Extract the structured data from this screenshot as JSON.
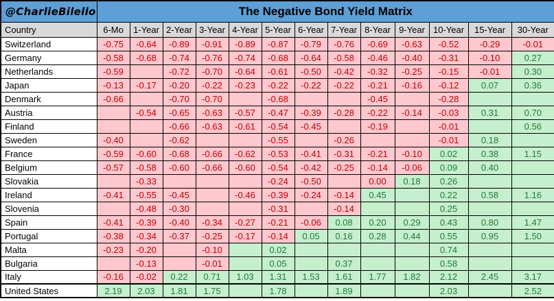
{
  "attribution": "@CharlieBilello",
  "title": "The Negative Bond Yield Matrix",
  "colors": {
    "header_blue": "#5D9FD6",
    "header_gray": "#D9D9D9",
    "negative_fill": "#FFC7CE",
    "negative_text": "#C00000",
    "positive_fill": "#C6EFCE",
    "positive_text": "#1E7B34"
  },
  "chart_data": {
    "type": "table",
    "title": "The Negative Bond Yield Matrix",
    "legend": {
      "n": "negative/zero yield (red on pink)",
      "p": "positive yield (green on light green)",
      "blank": "no data; cell keeps region color"
    },
    "columns": [
      "Country",
      "6-Mo",
      "1-Year",
      "2-Year",
      "3-Year",
      "4-Year",
      "5-Year",
      "6-Year",
      "7-Year",
      "8-Year",
      "9-Year",
      "10-Year",
      "15-Year",
      "30-Year"
    ],
    "rows": [
      {
        "country": "Switzerland",
        "thick_top": false,
        "cells": [
          [
            "-0.75",
            "n"
          ],
          [
            "-0.64",
            "n"
          ],
          [
            "-0.89",
            "n"
          ],
          [
            "-0.91",
            "n"
          ],
          [
            "-0.89",
            "n"
          ],
          [
            "-0.87",
            "n"
          ],
          [
            "-0.79",
            "n"
          ],
          [
            "-0.76",
            "n"
          ],
          [
            "-0.69",
            "n"
          ],
          [
            "-0.63",
            "n"
          ],
          [
            "-0.52",
            "n"
          ],
          [
            "-0.29",
            "n"
          ],
          [
            "-0.01",
            "n"
          ]
        ]
      },
      {
        "country": "Germany",
        "thick_top": false,
        "cells": [
          [
            "-0.58",
            "n"
          ],
          [
            "-0.68",
            "n"
          ],
          [
            "-0.74",
            "n"
          ],
          [
            "-0.76",
            "n"
          ],
          [
            "-0.74",
            "n"
          ],
          [
            "-0.68",
            "n"
          ],
          [
            "-0.64",
            "n"
          ],
          [
            "-0.58",
            "n"
          ],
          [
            "-0.46",
            "n"
          ],
          [
            "-0.40",
            "n"
          ],
          [
            "-0.31",
            "n"
          ],
          [
            "-0.10",
            "n"
          ],
          [
            "0.27",
            "p"
          ]
        ]
      },
      {
        "country": "Netherlands",
        "thick_top": false,
        "cells": [
          [
            "-0.59",
            "n"
          ],
          [
            "",
            "n"
          ],
          [
            "-0.72",
            "n"
          ],
          [
            "-0.70",
            "n"
          ],
          [
            "-0.64",
            "n"
          ],
          [
            "-0.61",
            "n"
          ],
          [
            "-0.50",
            "n"
          ],
          [
            "-0.42",
            "n"
          ],
          [
            "-0.32",
            "n"
          ],
          [
            "-0.25",
            "n"
          ],
          [
            "-0.15",
            "n"
          ],
          [
            "-0.01",
            "n"
          ],
          [
            "0.30",
            "p"
          ]
        ]
      },
      {
        "country": "Japan",
        "thick_top": false,
        "cells": [
          [
            "-0.13",
            "n"
          ],
          [
            "-0.17",
            "n"
          ],
          [
            "-0.20",
            "n"
          ],
          [
            "-0.22",
            "n"
          ],
          [
            "-0.23",
            "n"
          ],
          [
            "-0.22",
            "n"
          ],
          [
            "-0.22",
            "n"
          ],
          [
            "-0.22",
            "n"
          ],
          [
            "-0.21",
            "n"
          ],
          [
            "-0.16",
            "n"
          ],
          [
            "-0.12",
            "n"
          ],
          [
            "0.07",
            "p"
          ],
          [
            "0.36",
            "p"
          ]
        ]
      },
      {
        "country": "Denmark",
        "thick_top": false,
        "cells": [
          [
            "-0.66",
            "n"
          ],
          [
            "",
            "n"
          ],
          [
            "-0.70",
            "n"
          ],
          [
            "-0.70",
            "n"
          ],
          [
            "",
            "n"
          ],
          [
            "-0.68",
            "n"
          ],
          [
            "",
            "n"
          ],
          [
            "",
            "n"
          ],
          [
            "-0.45",
            "n"
          ],
          [
            "",
            "n"
          ],
          [
            "-0.28",
            "n"
          ],
          [
            "",
            "p"
          ],
          [
            "",
            "p"
          ]
        ]
      },
      {
        "country": "Austria",
        "thick_top": false,
        "cells": [
          [
            "",
            "n"
          ],
          [
            "-0.54",
            "n"
          ],
          [
            "-0.65",
            "n"
          ],
          [
            "-0.63",
            "n"
          ],
          [
            "-0.57",
            "n"
          ],
          [
            "-0.47",
            "n"
          ],
          [
            "-0.39",
            "n"
          ],
          [
            "-0.28",
            "n"
          ],
          [
            "-0.22",
            "n"
          ],
          [
            "-0.14",
            "n"
          ],
          [
            "-0.03",
            "n"
          ],
          [
            "0.31",
            "p"
          ],
          [
            "0.70",
            "p"
          ]
        ]
      },
      {
        "country": "Finland",
        "thick_top": false,
        "cells": [
          [
            "",
            "n"
          ],
          [
            "",
            "n"
          ],
          [
            "-0.66",
            "n"
          ],
          [
            "-0.63",
            "n"
          ],
          [
            "-0.61",
            "n"
          ],
          [
            "-0.54",
            "n"
          ],
          [
            "-0.45",
            "n"
          ],
          [
            "",
            "n"
          ],
          [
            "-0.19",
            "n"
          ],
          [
            "",
            "n"
          ],
          [
            "-0.01",
            "n"
          ],
          [
            "",
            "p"
          ],
          [
            "0.56",
            "p"
          ]
        ]
      },
      {
        "country": "Sweden",
        "thick_top": false,
        "cells": [
          [
            "-0.40",
            "n"
          ],
          [
            "",
            "n"
          ],
          [
            "-0.62",
            "n"
          ],
          [
            "",
            "n"
          ],
          [
            "",
            "n"
          ],
          [
            "-0.55",
            "n"
          ],
          [
            "",
            "n"
          ],
          [
            "-0.26",
            "n"
          ],
          [
            "",
            "n"
          ],
          [
            "",
            "n"
          ],
          [
            "-0.01",
            "n"
          ],
          [
            "0.18",
            "p"
          ],
          [
            "",
            "p"
          ]
        ]
      },
      {
        "country": "France",
        "thick_top": false,
        "cells": [
          [
            "-0.59",
            "n"
          ],
          [
            "-0.60",
            "n"
          ],
          [
            "-0.68",
            "n"
          ],
          [
            "-0.66",
            "n"
          ],
          [
            "-0.62",
            "n"
          ],
          [
            "-0.53",
            "n"
          ],
          [
            "-0.41",
            "n"
          ],
          [
            "-0.31",
            "n"
          ],
          [
            "-0.21",
            "n"
          ],
          [
            "-0.10",
            "n"
          ],
          [
            "0.02",
            "p"
          ],
          [
            "0.38",
            "p"
          ],
          [
            "1.15",
            "p"
          ]
        ]
      },
      {
        "country": "Belgium",
        "thick_top": false,
        "cells": [
          [
            "-0.57",
            "n"
          ],
          [
            "-0.58",
            "n"
          ],
          [
            "-0.60",
            "n"
          ],
          [
            "-0.66",
            "n"
          ],
          [
            "-0.60",
            "n"
          ],
          [
            "-0.54",
            "n"
          ],
          [
            "-0.42",
            "n"
          ],
          [
            "-0.25",
            "n"
          ],
          [
            "-0.14",
            "n"
          ],
          [
            "-0.06",
            "n"
          ],
          [
            "0.09",
            "p"
          ],
          [
            "0.40",
            "p"
          ],
          [
            "",
            "p"
          ]
        ]
      },
      {
        "country": "Slovakia",
        "thick_top": false,
        "cells": [
          [
            "",
            "n"
          ],
          [
            "-0.33",
            "n"
          ],
          [
            "",
            "n"
          ],
          [
            "",
            "n"
          ],
          [
            "",
            "n"
          ],
          [
            "-0.24",
            "n"
          ],
          [
            "-0.50",
            "n"
          ],
          [
            "",
            "n"
          ],
          [
            "0.00",
            "n"
          ],
          [
            "0.18",
            "p"
          ],
          [
            "0.26",
            "p"
          ],
          [
            "",
            "p"
          ],
          [
            "",
            "p"
          ]
        ]
      },
      {
        "country": "Ireland",
        "thick_top": false,
        "cells": [
          [
            "-0.41",
            "n"
          ],
          [
            "-0.55",
            "n"
          ],
          [
            "-0.45",
            "n"
          ],
          [
            "",
            "n"
          ],
          [
            "-0.46",
            "n"
          ],
          [
            "-0.39",
            "n"
          ],
          [
            "-0.24",
            "n"
          ],
          [
            "-0.14",
            "n"
          ],
          [
            "0.45",
            "p"
          ],
          [
            "",
            "p"
          ],
          [
            "0.22",
            "p"
          ],
          [
            "0.58",
            "p"
          ],
          [
            "1.16",
            "p"
          ]
        ]
      },
      {
        "country": "Slovenia",
        "thick_top": false,
        "cells": [
          [
            "",
            "n"
          ],
          [
            "-0.48",
            "n"
          ],
          [
            "-0.30",
            "n"
          ],
          [
            "",
            "n"
          ],
          [
            "",
            "n"
          ],
          [
            "-0.31",
            "n"
          ],
          [
            "",
            "n"
          ],
          [
            "-0.14",
            "n"
          ],
          [
            "",
            "p"
          ],
          [
            "",
            "p"
          ],
          [
            "0.25",
            "p"
          ],
          [
            "",
            "p"
          ],
          [
            "",
            "p"
          ]
        ]
      },
      {
        "country": "Spain",
        "thick_top": false,
        "cells": [
          [
            "-0.41",
            "n"
          ],
          [
            "-0.39",
            "n"
          ],
          [
            "-0.40",
            "n"
          ],
          [
            "-0.34",
            "n"
          ],
          [
            "-0.27",
            "n"
          ],
          [
            "-0.21",
            "n"
          ],
          [
            "-0.06",
            "n"
          ],
          [
            "0.08",
            "p"
          ],
          [
            "0.20",
            "p"
          ],
          [
            "0.29",
            "p"
          ],
          [
            "0.43",
            "p"
          ],
          [
            "0.80",
            "p"
          ],
          [
            "1.47",
            "p"
          ]
        ]
      },
      {
        "country": "Portugal",
        "thick_top": false,
        "cells": [
          [
            "-0.38",
            "n"
          ],
          [
            "-0.34",
            "n"
          ],
          [
            "-0.37",
            "n"
          ],
          [
            "-0.25",
            "n"
          ],
          [
            "-0.17",
            "n"
          ],
          [
            "-0.14",
            "n"
          ],
          [
            "0.05",
            "p"
          ],
          [
            "0.16",
            "p"
          ],
          [
            "0.28",
            "p"
          ],
          [
            "0.44",
            "p"
          ],
          [
            "0.55",
            "p"
          ],
          [
            "0.95",
            "p"
          ],
          [
            "1.50",
            "p"
          ]
        ]
      },
      {
        "country": "Malta",
        "thick_top": false,
        "cells": [
          [
            "-0.23",
            "n"
          ],
          [
            "-0.20",
            "n"
          ],
          [
            "",
            "n"
          ],
          [
            "-0.10",
            "n"
          ],
          [
            "",
            "p"
          ],
          [
            "0.02",
            "p"
          ],
          [
            "",
            "p"
          ],
          [
            "",
            "p"
          ],
          [
            "",
            "p"
          ],
          [
            "",
            "p"
          ],
          [
            "0.74",
            "p"
          ],
          [
            "",
            "p"
          ],
          [
            "",
            "p"
          ]
        ]
      },
      {
        "country": "Bulgaria",
        "thick_top": false,
        "cells": [
          [
            "",
            "n"
          ],
          [
            "-0.13",
            "n"
          ],
          [
            "",
            "n"
          ],
          [
            "-0.01",
            "n"
          ],
          [
            "",
            "p"
          ],
          [
            "0.05",
            "p"
          ],
          [
            "",
            "p"
          ],
          [
            "0.37",
            "p"
          ],
          [
            "",
            "p"
          ],
          [
            "",
            "p"
          ],
          [
            "0.58",
            "p"
          ],
          [
            "",
            "p"
          ],
          [
            "",
            "p"
          ]
        ]
      },
      {
        "country": "Italy",
        "thick_top": false,
        "cells": [
          [
            "-0.16",
            "n"
          ],
          [
            "-0.02",
            "n"
          ],
          [
            "0.22",
            "p"
          ],
          [
            "0.71",
            "p"
          ],
          [
            "1.03",
            "p"
          ],
          [
            "1.31",
            "p"
          ],
          [
            "1.53",
            "p"
          ],
          [
            "1.61",
            "p"
          ],
          [
            "1.77",
            "p"
          ],
          [
            "1.82",
            "p"
          ],
          [
            "2.12",
            "p"
          ],
          [
            "2.45",
            "p"
          ],
          [
            "3.17",
            "p"
          ]
        ]
      },
      {
        "country": "United States",
        "thick_top": true,
        "cells": [
          [
            "2.19",
            "p"
          ],
          [
            "2.03",
            "p"
          ],
          [
            "1.81",
            "p"
          ],
          [
            "1.75",
            "p"
          ],
          [
            "",
            "p"
          ],
          [
            "1.78",
            "p"
          ],
          [
            "",
            "p"
          ],
          [
            "1.89",
            "p"
          ],
          [
            "",
            "p"
          ],
          [
            "",
            "p"
          ],
          [
            "2.03",
            "p"
          ],
          [
            "",
            "p"
          ],
          [
            "2.52",
            "p"
          ]
        ]
      }
    ]
  }
}
